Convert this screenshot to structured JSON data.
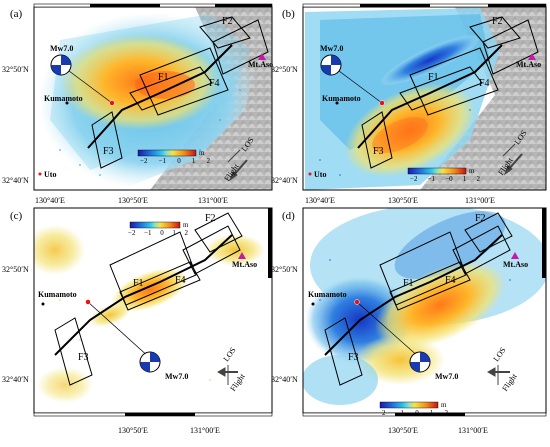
{
  "figure": {
    "panels": [
      {
        "letter": "(a)",
        "fault_labels": [
          "F1",
          "F2",
          "F3",
          "F4"
        ],
        "city": "Kumamoto",
        "city2": "Uto",
        "volcano": "Mt.Aso",
        "event": "Mw7.0",
        "los_label": "LOS",
        "flight_label": "Flight",
        "colorbar_ticks": [
          "−2",
          "−1",
          "0",
          "1",
          "2"
        ],
        "colorbar_unit": "m"
      },
      {
        "letter": "(b)",
        "fault_labels": [
          "F1",
          "F2",
          "F3",
          "F4"
        ],
        "city": "Kumamoto",
        "city2": "Uto",
        "volcano": "Mt.Aso",
        "event": "Mw7.0",
        "los_label": "LOS",
        "flight_label": "Flight",
        "colorbar_ticks": [
          "−2",
          "−1",
          "−0",
          "1",
          "2"
        ],
        "colorbar_unit": "m"
      },
      {
        "letter": "(c)",
        "fault_labels": [
          "F1",
          "F2",
          "F3",
          "F4"
        ],
        "city": "Kumamoto",
        "volcano": "Mt.Aso",
        "event": "Mw7.0",
        "los_label": "LOS",
        "flight_label": "Flight",
        "colorbar_ticks": [
          "−2",
          "−1",
          "0",
          "1",
          "2"
        ],
        "colorbar_unit": "m"
      },
      {
        "letter": "(d)",
        "fault_labels": [
          "F1",
          "F2",
          "F3",
          "F4"
        ],
        "city": "Kumamoto",
        "volcano": "Mt.Aso",
        "event": "Mw7.0",
        "los_label": "LOS",
        "flight_label": "Flight",
        "colorbar_ticks": [
          "−2",
          "−1",
          "0",
          "1",
          "2"
        ],
        "colorbar_unit": "m"
      }
    ],
    "lat_labels": [
      "32°50′N",
      "32°40′N"
    ],
    "lon_labels_top": [
      "130°40′E",
      "130°50′E",
      "131°00′E"
    ],
    "lon_labels_bottom": [
      "130°50′E",
      "131°00′E"
    ]
  }
}
